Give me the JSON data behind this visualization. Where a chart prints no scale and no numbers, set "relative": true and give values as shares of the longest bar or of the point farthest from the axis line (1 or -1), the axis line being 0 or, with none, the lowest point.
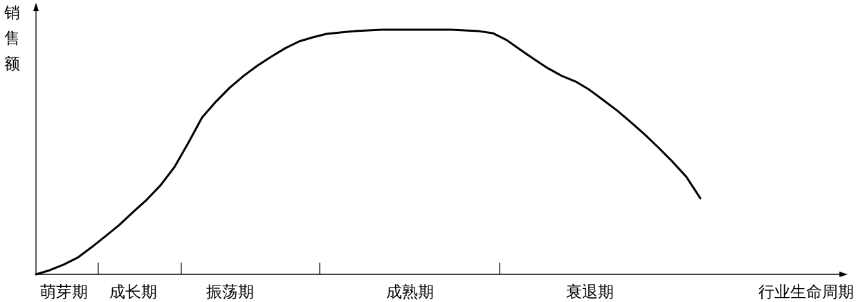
{
  "chart_data": {
    "type": "line",
    "relative": true,
    "ylabel": "销售额",
    "xlabel": "行业生命周期",
    "color": "#000000",
    "marker": "none",
    "line_style": "solid",
    "categories": [
      null,
      null,
      "萌芽期",
      null,
      null,
      null,
      null,
      "成长期",
      null,
      null,
      null,
      null,
      null,
      null,
      "振荡期",
      null,
      null,
      null,
      null,
      null,
      null,
      null,
      null,
      null,
      null,
      null,
      null,
      "成熟期",
      null,
      null,
      null,
      null,
      null,
      null,
      null,
      null,
      null,
      null,
      null,
      null,
      "衰退期",
      null,
      null,
      null,
      null,
      null,
      null,
      null,
      null
    ],
    "values": [
      0,
      0.017,
      0.04,
      0.068,
      0.11,
      0.155,
      0.201,
      0.254,
      0.305,
      0.364,
      0.438,
      0.537,
      0.641,
      0.706,
      0.763,
      0.811,
      0.853,
      0.89,
      0.924,
      0.952,
      0.969,
      0.983,
      0.989,
      0.994,
      0.997,
      1,
      1,
      1,
      1,
      1,
      1,
      0.997,
      0.994,
      0.986,
      0.958,
      0.918,
      0.879,
      0.842,
      0.811,
      0.788,
      0.754,
      0.712,
      0.669,
      0.621,
      0.571,
      0.517,
      0.46,
      0.398,
      0.311
    ]
  }
}
